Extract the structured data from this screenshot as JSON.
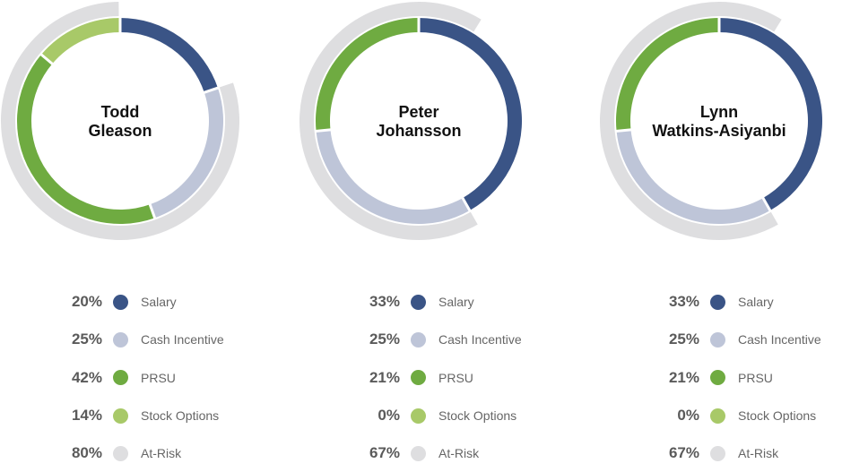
{
  "colors": {
    "Salary": "#3a5486",
    "Cash Incentive": "#bec5d8",
    "PRSU": "#6fab41",
    "Stock Options": "#a8c968",
    "At-Risk": "#dedee0"
  },
  "chart_data": [
    {
      "type": "pie",
      "name_lines": [
        "Todd",
        "Gleason"
      ],
      "series": [
        {
          "label": "Salary",
          "value": 20
        },
        {
          "label": "Cash Incentive",
          "value": 25
        },
        {
          "label": "PRSU",
          "value": 42
        },
        {
          "label": "Stock Options",
          "value": 14
        },
        {
          "label": "At-Risk",
          "value": 80
        }
      ],
      "display": [
        "20%",
        "25%",
        "42%",
        "14%",
        "80%"
      ]
    },
    {
      "type": "pie",
      "name_lines": [
        "Peter",
        "Johansson"
      ],
      "series": [
        {
          "label": "Salary",
          "value": 33
        },
        {
          "label": "Cash Incentive",
          "value": 25
        },
        {
          "label": "PRSU",
          "value": 21
        },
        {
          "label": "Stock Options",
          "value": 0
        },
        {
          "label": "At-Risk",
          "value": 67
        }
      ],
      "display": [
        "33%",
        "25%",
        "21%",
        "0%",
        "67%"
      ]
    },
    {
      "type": "pie",
      "name_lines": [
        "Lynn",
        "Watkins-Asiyanbi"
      ],
      "series": [
        {
          "label": "Salary",
          "value": 33
        },
        {
          "label": "Cash Incentive",
          "value": 25
        },
        {
          "label": "PRSU",
          "value": 21
        },
        {
          "label": "Stock Options",
          "value": 0
        },
        {
          "label": "At-Risk",
          "value": 67
        }
      ],
      "display": [
        "33%",
        "25%",
        "21%",
        "0%",
        "67%"
      ]
    }
  ]
}
